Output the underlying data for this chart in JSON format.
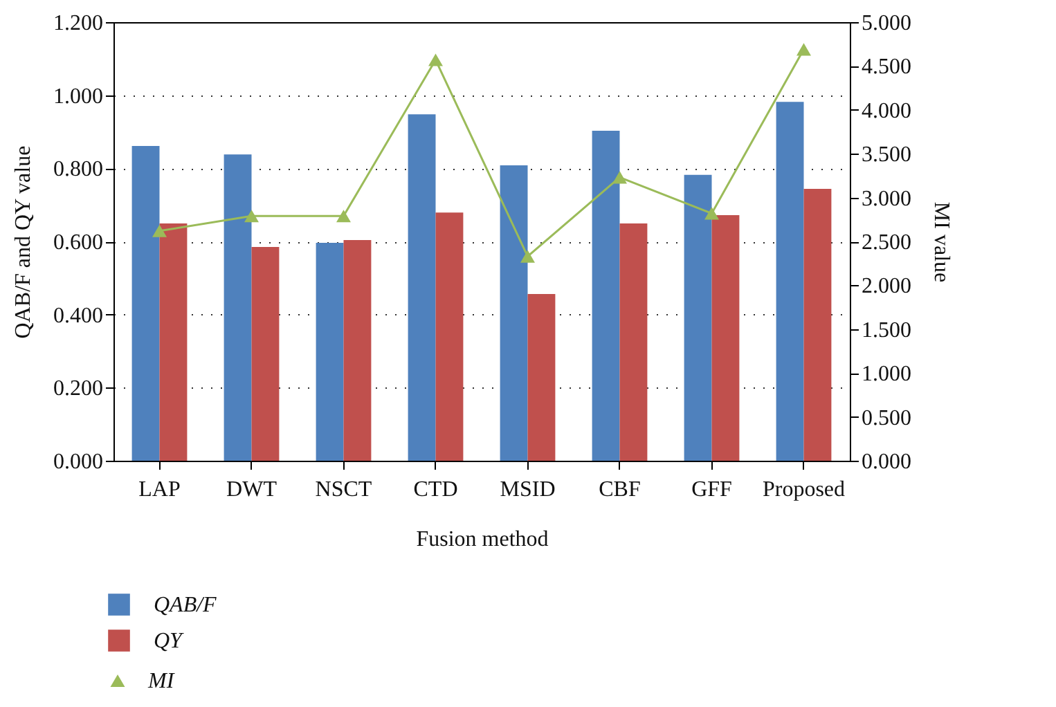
{
  "chart_data": {
    "type": "bar",
    "xlabel": "Fusion method",
    "ylabel": "QAB/F and QY value",
    "y2label": "MI value",
    "categories": [
      "LAP",
      "DWT",
      "NSCT",
      "CTD",
      "MSID",
      "CBF",
      "GFF",
      "Proposed"
    ],
    "series": [
      {
        "name": "QAB/F",
        "color": "#4f81bd",
        "values": [
          0.861,
          0.838,
          0.596,
          0.948,
          0.808,
          0.903,
          0.782,
          0.982
        ]
      },
      {
        "name": "QY",
        "color": "#c0504d",
        "values": [
          0.649,
          0.585,
          0.604,
          0.679,
          0.456,
          0.649,
          0.672,
          0.744
        ]
      },
      {
        "name": "MI",
        "type": "line",
        "axis": "y2",
        "color": "#9bbb59",
        "values": [
          2.62,
          2.79,
          2.79,
          4.57,
          2.33,
          3.23,
          2.82,
          4.69
        ]
      }
    ],
    "ylim": [
      0,
      1.2
    ],
    "yticks": [
      {
        "value": 0,
        "label": "0.000"
      },
      {
        "value": 0.2,
        "label": "0.200"
      },
      {
        "value": 0.4,
        "label": "0.400"
      },
      {
        "value": 0.6,
        "label": "0.600"
      },
      {
        "value": 0.8,
        "label": "0.800"
      },
      {
        "value": 1,
        "label": "1.000"
      },
      {
        "value": 1.2,
        "label": "1.200"
      }
    ],
    "y2lim": [
      0,
      5
    ],
    "y2ticks": [
      {
        "value": 0,
        "label": "0.000"
      },
      {
        "value": 0.5,
        "label": "0.500"
      },
      {
        "value": 1,
        "label": "1.000"
      },
      {
        "value": 1.5,
        "label": "1.500"
      },
      {
        "value": 2,
        "label": "2.000"
      },
      {
        "value": 2.5,
        "label": "2.500"
      },
      {
        "value": 3,
        "label": "3.000"
      },
      {
        "value": 3.5,
        "label": "3.500"
      },
      {
        "value": 4,
        "label": "4.000"
      },
      {
        "value": 4.5,
        "label": "4.500"
      },
      {
        "value": 5,
        "label": "5.000"
      }
    ],
    "grid": "y",
    "legend": "bottom",
    "marker": "triangle",
    "line_style": "solid"
  }
}
